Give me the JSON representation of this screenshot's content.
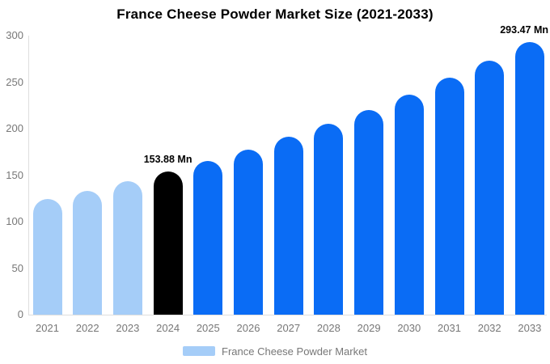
{
  "chart_data": {
    "type": "bar",
    "title": "France Cheese Powder Market Size (2021-2033)",
    "categories": [
      "2021",
      "2022",
      "2023",
      "2024",
      "2025",
      "2026",
      "2027",
      "2028",
      "2029",
      "2030",
      "2031",
      "2032",
      "2033"
    ],
    "series": [
      {
        "name": "France Cheese Powder Market",
        "values": [
          124.1,
          133.3,
          143.2,
          153.88,
          165.3,
          177.6,
          190.9,
          205.1,
          220.3,
          236.7,
          254.4,
          273.3,
          293.47
        ]
      }
    ],
    "unit": "Mn",
    "xlabel": "",
    "ylabel": "",
    "ylim": [
      0,
      300
    ],
    "yticks": [
      0,
      50,
      100,
      150,
      200,
      250,
      300
    ],
    "grid": false,
    "legend_position": "bottom",
    "point_colors": [
      "#a5cdf8",
      "#a5cdf8",
      "#a5cdf8",
      "#000000",
      "#0a6cf5",
      "#0a6cf5",
      "#0a6cf5",
      "#0a6cf5",
      "#0a6cf5",
      "#0a6cf5",
      "#0a6cf5",
      "#0a6cf5",
      "#0a6cf5"
    ],
    "annotations": [
      {
        "category": "2024",
        "text": "153.88 Mn"
      },
      {
        "category": "2033",
        "text": "293.47 Mn"
      }
    ]
  },
  "legend": {
    "label": "France Cheese Powder Market",
    "swatch_color": "#a5cdf8"
  },
  "colors": {
    "historical_bar": "#a5cdf8",
    "base_year_bar": "#000000",
    "forecast_bar": "#0a6cf5",
    "axis_line": "#dedede",
    "axis_label_text": "#777777",
    "title_text": "#000000",
    "annotation_text": "#000000",
    "background": "#ffffff"
  }
}
